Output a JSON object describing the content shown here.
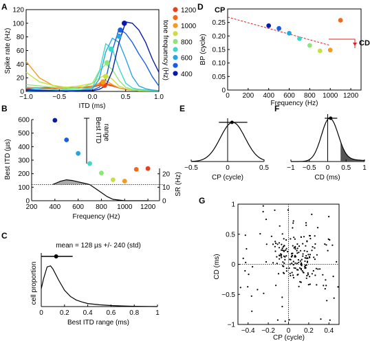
{
  "colors": {
    "tone_1200": "#e8401c",
    "tone_1100": "#f06a1a",
    "tone_1000": "#f49a20",
    "tone_900": "#c8e040",
    "tone_800": "#8ee67a",
    "tone_700": "#3ed8c8",
    "tone_600": "#28a4e0",
    "tone_500": "#1a5ee0",
    "tone_400": "#0a1aa8",
    "cp_red": "#e02020",
    "shade": "#aaaaaa"
  },
  "panel_letters": {
    "A": "A",
    "B": "B",
    "C": "C",
    "D": "D",
    "E": "E",
    "F": "F",
    "G": "G"
  },
  "chart_data": [
    {
      "panel": "A",
      "type": "line",
      "xlabel": "ITD (ms)",
      "ylabel": "Spike rate (Hz)",
      "xlim": [
        -1.0,
        1.0
      ],
      "ylim": [
        0,
        120
      ],
      "xticks": [
        "−1.0",
        "−0.5",
        "0.0",
        "0.5",
        "1.0"
      ],
      "yticks": [
        "0",
        "20",
        "40",
        "60",
        "80",
        "100",
        "120"
      ],
      "legend_title": "tone frequency (Hz)",
      "legend_labels": [
        "1200",
        "1000",
        "800",
        "600",
        "400"
      ],
      "series": [
        {
          "color_key": "tone_400",
          "x": [
            -1.0,
            -0.8,
            -0.6,
            -0.4,
            -0.2,
            0.0,
            0.1,
            0.2,
            0.3,
            0.4,
            0.5,
            0.6,
            0.7,
            0.8,
            0.9,
            1.0
          ],
          "y": [
            2,
            1,
            1,
            0,
            1,
            1,
            3,
            8,
            30,
            72,
            102,
            100,
            90,
            72,
            48,
            28
          ],
          "best": [
            0.48,
            100
          ]
        },
        {
          "color_key": "tone_500",
          "x": [
            -1.0,
            -0.8,
            -0.6,
            -0.4,
            -0.2,
            0.0,
            0.1,
            0.2,
            0.3,
            0.4,
            0.5,
            0.6,
            0.7,
            0.8,
            0.9,
            1.0
          ],
          "y": [
            3,
            2,
            1,
            1,
            1,
            2,
            6,
            18,
            60,
            92,
            85,
            72,
            55,
            40,
            22,
            8
          ],
          "best": [
            0.42,
            90
          ]
        },
        {
          "color_key": "tone_600",
          "x": [
            -1.0,
            -0.8,
            -0.6,
            -0.4,
            -0.2,
            0.0,
            0.1,
            0.2,
            0.3,
            0.4,
            0.5,
            0.6,
            0.7,
            0.8,
            0.9,
            1.0
          ],
          "y": [
            1,
            1,
            1,
            0,
            1,
            4,
            18,
            58,
            78,
            72,
            48,
            22,
            8,
            4,
            2,
            1
          ],
          "best": [
            0.4,
            81
          ]
        },
        {
          "color_key": "tone_700",
          "x": [
            -1.0,
            -0.8,
            -0.6,
            -0.4,
            -0.2,
            0.0,
            0.1,
            0.2,
            0.3,
            0.4,
            0.5,
            0.6,
            0.7,
            0.8,
            0.9,
            1.0
          ],
          "y": [
            6,
            4,
            3,
            2,
            2,
            6,
            28,
            70,
            62,
            34,
            12,
            5,
            3,
            2,
            1,
            1
          ],
          "best": [
            0.28,
            62
          ]
        },
        {
          "color_key": "tone_800",
          "x": [
            -1.0,
            -0.8,
            -0.6,
            -0.4,
            -0.2,
            0.0,
            0.1,
            0.2,
            0.3,
            0.4,
            0.5,
            0.6,
            0.7,
            0.8,
            0.9,
            1.0
          ],
          "y": [
            10,
            8,
            6,
            5,
            4,
            12,
            30,
            40,
            32,
            16,
            6,
            3,
            2,
            1,
            1,
            1
          ],
          "best": [
            0.22,
            42
          ]
        },
        {
          "color_key": "tone_900",
          "x": [
            -1.0,
            -0.8,
            -0.6,
            -0.4,
            -0.2,
            0.0,
            0.1,
            0.2,
            0.3,
            0.4,
            0.5,
            0.6,
            0.7,
            0.8,
            0.9,
            1.0
          ],
          "y": [
            28,
            14,
            9,
            6,
            8,
            12,
            20,
            24,
            18,
            8,
            4,
            2,
            1,
            1,
            1,
            1
          ],
          "best": [
            0.2,
            22
          ]
        },
        {
          "color_key": "tone_1000",
          "x": [
            -1.0,
            -0.8,
            -0.6,
            -0.4,
            -0.2,
            0.0,
            0.1,
            0.2,
            0.3,
            0.4,
            0.5,
            0.6,
            0.7,
            0.8,
            0.9,
            1.0
          ],
          "y": [
            44,
            20,
            9,
            4,
            6,
            8,
            12,
            16,
            10,
            5,
            3,
            2,
            1,
            1,
            1,
            1
          ],
          "best": [
            0.16,
            14
          ]
        },
        {
          "color_key": "tone_1100",
          "x": [
            -1.0,
            -0.8,
            -0.6,
            -0.4,
            -0.2,
            0.0,
            0.1,
            0.2,
            0.3,
            0.4,
            0.5,
            0.6,
            0.7,
            0.8,
            0.9,
            1.0
          ],
          "y": [
            6,
            5,
            4,
            6,
            5,
            7,
            10,
            12,
            9,
            5,
            3,
            2,
            2,
            1,
            1,
            1
          ],
          "best": [
            0.14,
            11
          ]
        },
        {
          "color_key": "tone_1200",
          "x": [
            -1.0,
            -0.8,
            -0.6,
            -0.4,
            -0.2,
            0.0,
            0.1,
            0.2,
            0.3,
            0.4,
            0.5,
            0.6,
            0.7,
            0.8,
            0.9,
            1.0
          ],
          "y": [
            4,
            5,
            6,
            4,
            5,
            6,
            9,
            10,
            8,
            5,
            3,
            2,
            2,
            2,
            1,
            1
          ],
          "best": [
            0.18,
            9
          ]
        }
      ]
    },
    {
      "panel": "B",
      "type": "scatter",
      "xlabel": "Frequency (Hz)",
      "ylabel": "Best ITD (µs)",
      "ylabel_right": "SR (Hz)",
      "xlim": [
        200,
        1300
      ],
      "ylim": [
        0,
        600
      ],
      "xticks": [
        "200",
        "400",
        "600",
        "800",
        "1000",
        "1200"
      ],
      "yticks": [
        "0",
        "100",
        "200",
        "300",
        "400",
        "500",
        "600"
      ],
      "yticks_right": [
        "0",
        "10",
        "20"
      ],
      "ylim_right": [
        0,
        25
      ],
      "annotation": [
        "Best ITD",
        "range"
      ],
      "points": [
        {
          "x": 400,
          "y": 595,
          "color_key": "tone_400"
        },
        {
          "x": 500,
          "y": 450,
          "color_key": "tone_500"
        },
        {
          "x": 600,
          "y": 350,
          "color_key": "tone_600"
        },
        {
          "x": 700,
          "y": 275,
          "color_key": "tone_700"
        },
        {
          "x": 800,
          "y": 205,
          "color_key": "tone_800"
        },
        {
          "x": 900,
          "y": 155,
          "color_key": "tone_900"
        },
        {
          "x": 1000,
          "y": 145,
          "color_key": "tone_1000"
        },
        {
          "x": 1100,
          "y": 232,
          "color_key": "tone_1100"
        },
        {
          "x": 1200,
          "y": 238,
          "color_key": "tone_1200"
        }
      ],
      "sr_curve": {
        "x": [
          380,
          450,
          500,
          550,
          600,
          650,
          700,
          750,
          800,
          850,
          900,
          1000,
          1100,
          1200
        ],
        "y": [
          12,
          14.5,
          15.5,
          15,
          14,
          13,
          12,
          9,
          6,
          3,
          1,
          0,
          0,
          0
        ]
      },
      "sr_threshold": 12
    },
    {
      "panel": "C",
      "type": "line",
      "title": "mean = 128 µs +/- 240 (std)",
      "xlabel": "Best ITD range (ms)",
      "ylabel": "cell proportion",
      "xlim": [
        0,
        1
      ],
      "xticks": [
        "0",
        "0.2",
        "0.4",
        "0.6",
        "0.8",
        "1"
      ],
      "curve": {
        "x": [
          0,
          0.02,
          0.05,
          0.08,
          0.1,
          0.15,
          0.2,
          0.25,
          0.3,
          0.35,
          0.4,
          0.5,
          0.6,
          0.7,
          0.8,
          1.0
        ],
        "y": [
          0.35,
          0.55,
          0.78,
          0.8,
          0.74,
          0.52,
          0.32,
          0.2,
          0.13,
          0.09,
          0.06,
          0.035,
          0.02,
          0.012,
          0.006,
          0.0
        ]
      },
      "mean": 0.128,
      "std_range": [
        0.0,
        0.27
      ]
    },
    {
      "panel": "D",
      "type": "scatter",
      "xlabel": "Frequency (Hz)",
      "ylabel": "BP (cycle)",
      "xlim": [
        0,
        1300
      ],
      "ylim": [
        0,
        0.3
      ],
      "xticks": [
        "0",
        "200",
        "400",
        "600",
        "800",
        "1000",
        "1200"
      ],
      "yticks": [
        "0",
        "0.05",
        "0.10",
        "0.15",
        "0.20",
        "0.25"
      ],
      "annotations": {
        "cp": "CP",
        "cd": "CD"
      },
      "points": [
        {
          "x": 400,
          "y": 0.238,
          "color_key": "tone_400"
        },
        {
          "x": 500,
          "y": 0.228,
          "color_key": "tone_500"
        },
        {
          "x": 600,
          "y": 0.21,
          "color_key": "tone_600"
        },
        {
          "x": 700,
          "y": 0.19,
          "color_key": "tone_700"
        },
        {
          "x": 800,
          "y": 0.165,
          "color_key": "tone_800"
        },
        {
          "x": 900,
          "y": 0.145,
          "color_key": "tone_900"
        },
        {
          "x": 1000,
          "y": 0.148,
          "color_key": "tone_1000"
        },
        {
          "x": 1100,
          "y": 0.258,
          "color_key": "tone_1100"
        }
      ],
      "fit_line": {
        "x": [
          0,
          1000
        ],
        "y": [
          0.27,
          0.165
        ]
      }
    },
    {
      "panel": "E",
      "type": "line",
      "xlabel": "CP (cycle)",
      "xlim": [
        -0.5,
        0.5
      ],
      "xticks": [
        "−0.5",
        "0",
        "0.5"
      ],
      "mean": 0.06,
      "std_range": [
        -0.12,
        0.27
      ]
    },
    {
      "panel": "F",
      "type": "line",
      "xlabel": "CD (ms)",
      "xlim": [
        -1,
        1
      ],
      "xticks": [
        "−1",
        "−0.5",
        "0",
        "0.5",
        "1"
      ],
      "mean": 0.08,
      "std_range": [
        -0.08,
        0.26
      ],
      "shaded_from": 0.35
    },
    {
      "panel": "G",
      "type": "scatter",
      "xlabel": "CP (cycle)",
      "ylabel": "CD (ms)",
      "xlim": [
        -0.5,
        0.5
      ],
      "ylim": [
        -1,
        1
      ],
      "xticks": [
        "−0.4",
        "−0.2",
        "0",
        "0.2",
        "0.4"
      ],
      "yticks": [
        "−1",
        "−0.5",
        "0",
        "0.5",
        "1"
      ],
      "n_points": 220
    }
  ]
}
